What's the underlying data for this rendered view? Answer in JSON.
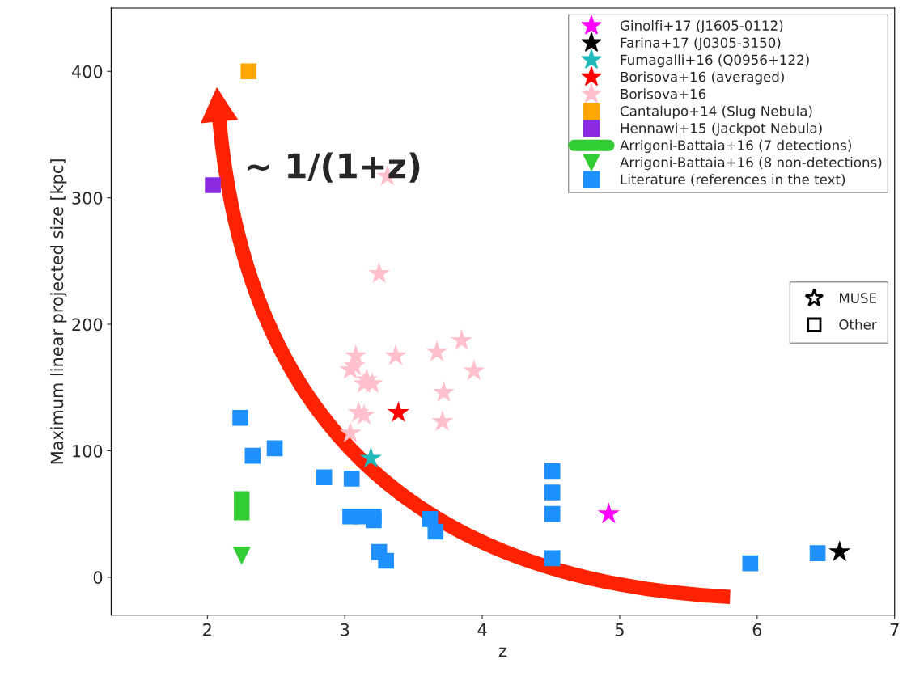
{
  "chart_data": {
    "type": "scatter",
    "xlabel": "z",
    "ylabel": "Maximum linear projected size [kpc]",
    "xlim": [
      1.3,
      7.0
    ],
    "ylim": [
      -30,
      450
    ],
    "xticks": [
      2,
      3,
      4,
      5,
      6,
      7
    ],
    "yticks": [
      0,
      100,
      200,
      300,
      400
    ],
    "grid": false,
    "legend": "top right",
    "annotations": [
      "~ 1/(1+z)",
      "MUSE",
      "Other"
    ],
    "series": [
      {
        "name": "Ginolfi+17 (J1605-0112)",
        "color": "#ff00ff",
        "marker": "star",
        "x": [
          4.92
        ],
        "values": [
          50
        ]
      },
      {
        "name": "Farina+17 (J0305-3150)",
        "color": "#000000",
        "marker": "star",
        "x": [
          6.6
        ],
        "values": [
          20
        ]
      },
      {
        "name": "Fumagalli+16 (Q0956+122)",
        "color": "#20b8b8",
        "marker": "star",
        "x": [
          3.19
        ],
        "values": [
          94
        ]
      },
      {
        "name": "Borisova+16 (averaged)",
        "color": "#ff0000",
        "marker": "star",
        "x": [
          3.39
        ],
        "values": [
          130
        ]
      },
      {
        "name": "Borisova+16",
        "color": "#ffc0cb",
        "marker": "star",
        "x": [
          3.25,
          3.31,
          3.08,
          3.07,
          3.04,
          3.16,
          3.2,
          3.14,
          3.37,
          3.67,
          3.85,
          3.94,
          3.72,
          3.71,
          3.14,
          3.1,
          3.04
        ],
        "values": [
          240,
          317,
          175,
          167,
          164,
          156,
          153,
          153,
          175,
          178,
          187,
          163,
          146,
          123,
          128,
          130,
          114
        ]
      },
      {
        "name": "Cantalupo+14 (Slug Nebula)",
        "color": "#ffa500",
        "marker": "square",
        "x": [
          2.3
        ],
        "values": [
          400
        ]
      },
      {
        "name": "Hennawi+15 (Jackpot Nebula)",
        "color": "#8a2be2",
        "marker": "square",
        "x": [
          2.04
        ],
        "values": [
          310
        ]
      },
      {
        "name": "Arrigoni-Battaia+16 (7 detections)",
        "color": "#32cd32",
        "type": "line",
        "x": [
          2.25,
          2.25
        ],
        "values": [
          45,
          68
        ]
      },
      {
        "name": "Arrigoni-Battaia+16 (8 non-detections)",
        "color": "#32cd32",
        "marker": "triangle",
        "x": [
          2.25
        ],
        "values": [
          17
        ]
      },
      {
        "name": "Literature (references in the text)",
        "color": "#1e90ff",
        "marker": "square",
        "x": [
          2.24,
          2.33,
          2.49,
          2.85,
          3.05,
          3.04,
          3.12,
          3.21,
          3.21,
          3.62,
          3.66,
          3.25,
          3.3,
          4.51,
          4.51,
          4.51,
          4.51,
          5.95,
          6.44
        ],
        "values": [
          126,
          96,
          102,
          79,
          78,
          48,
          48,
          48,
          45,
          46,
          36,
          20,
          13,
          84,
          67,
          50,
          15,
          11,
          19
        ]
      }
    ]
  }
}
